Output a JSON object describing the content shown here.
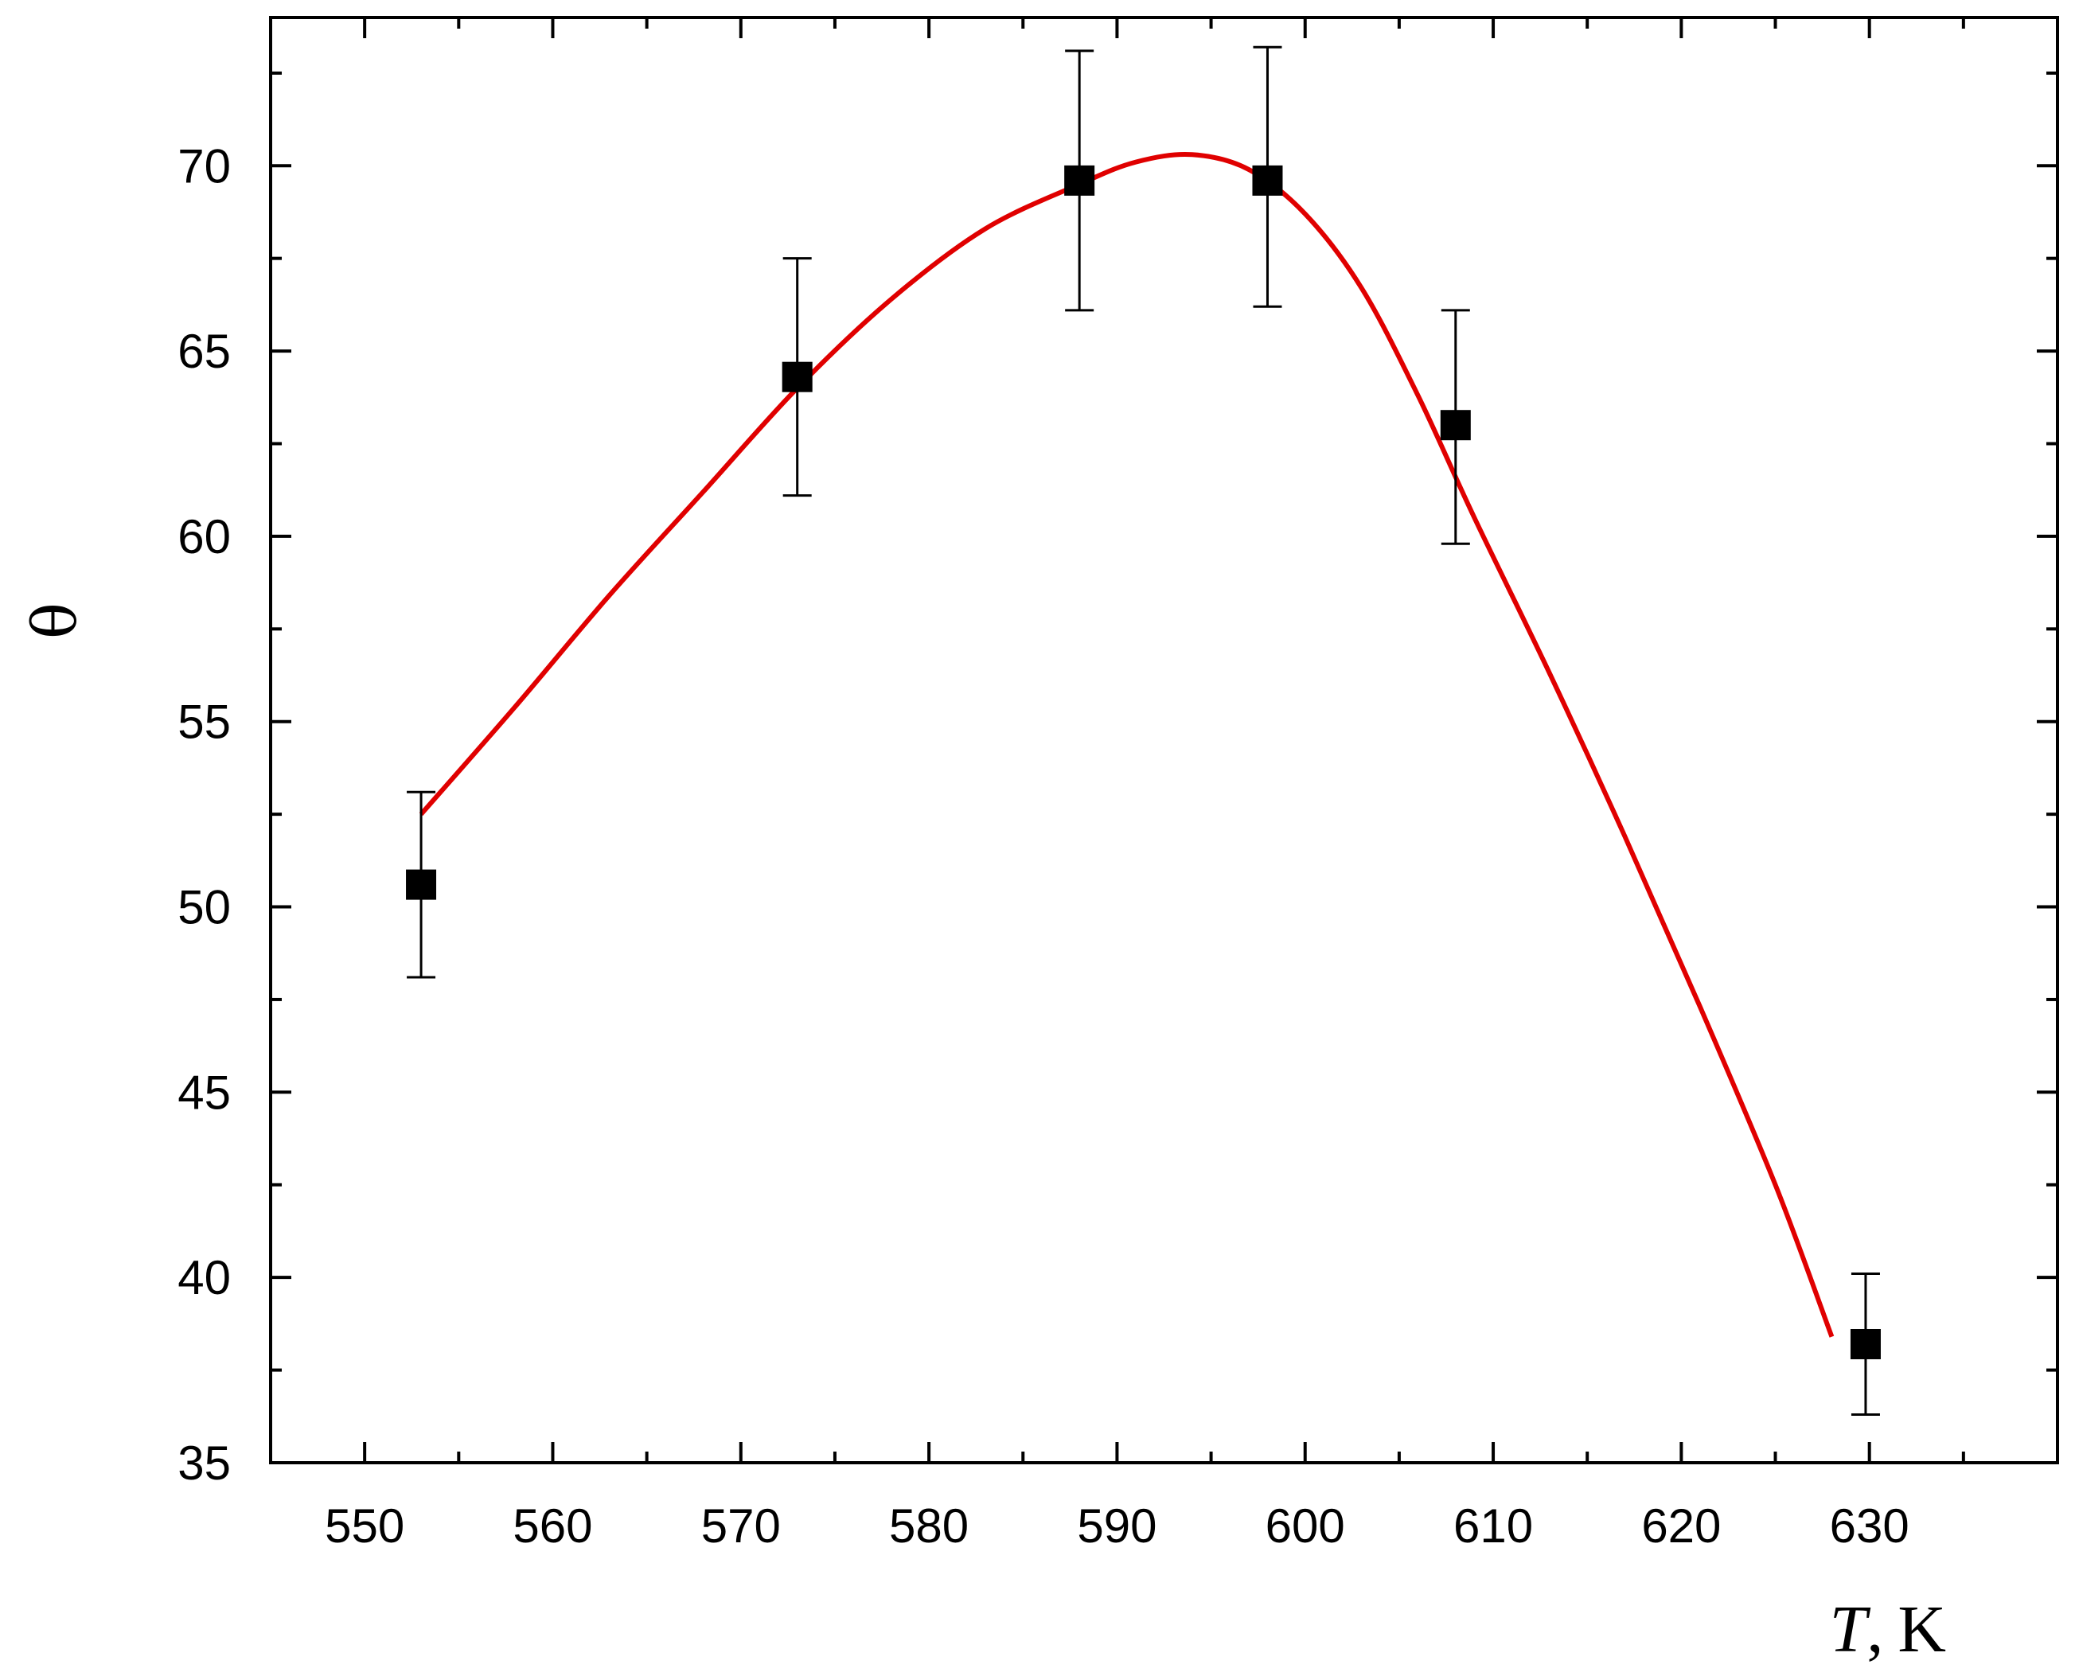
{
  "chart_data": {
    "type": "scatter",
    "title": "",
    "xlabel": {
      "var": "T",
      "sep": ",",
      "unit": "K"
    },
    "ylabel": "θ",
    "xlim": [
      545,
      640
    ],
    "ylim": [
      35,
      74
    ],
    "xticks": [
      550,
      560,
      570,
      580,
      590,
      600,
      610,
      620,
      630
    ],
    "yticks": [
      35,
      40,
      45,
      50,
      55,
      60,
      65,
      70
    ],
    "grid": false,
    "series": [
      {
        "kind": "points-with-errorbars",
        "marker": "square",
        "color": "#000000",
        "points": [
          {
            "x": 553,
            "y": 50.6,
            "err_low": 48.1,
            "err_high": 53.1
          },
          {
            "x": 573,
            "y": 64.3,
            "err_low": 61.1,
            "err_high": 67.5
          },
          {
            "x": 588,
            "y": 69.6,
            "err_low": 66.1,
            "err_high": 73.1
          },
          {
            "x": 598,
            "y": 69.6,
            "err_low": 66.2,
            "err_high": 73.2
          },
          {
            "x": 608,
            "y": 63.0,
            "err_low": 59.8,
            "err_high": 66.1
          },
          {
            "x": 629.8,
            "y": 38.2,
            "err_low": 36.3,
            "err_high": 40.1
          }
        ]
      },
      {
        "kind": "curve",
        "color": "#e00000",
        "points": [
          [
            553,
            52.5
          ],
          [
            558,
            55.4
          ],
          [
            563,
            58.4
          ],
          [
            568,
            61.2
          ],
          [
            573,
            64.0
          ],
          [
            578,
            66.4
          ],
          [
            583,
            68.3
          ],
          [
            588,
            69.5
          ],
          [
            591,
            70.1
          ],
          [
            594,
            70.3
          ],
          [
            597,
            69.9
          ],
          [
            600,
            68.7
          ],
          [
            603,
            66.7
          ],
          [
            606,
            63.8
          ],
          [
            609,
            60.5
          ],
          [
            613,
            56.3
          ],
          [
            617,
            51.9
          ],
          [
            621,
            47.3
          ],
          [
            625,
            42.5
          ],
          [
            628,
            38.4
          ]
        ]
      }
    ]
  }
}
